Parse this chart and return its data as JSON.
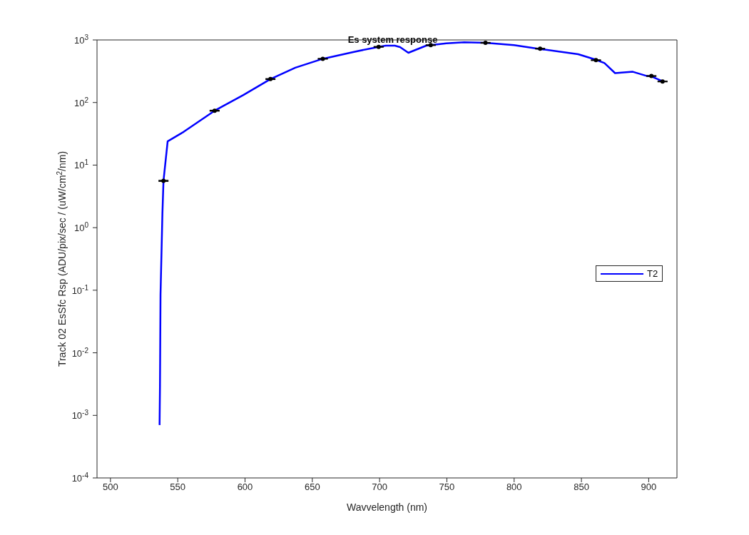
{
  "chart_data": {
    "type": "line",
    "title": "Es system response",
    "xlabel": "Wavvelength (nm)",
    "ylabel": "Track 02 EsSfc Rsp (ADU/pix/sec / (uW/cm$^{2}$/nm)",
    "log": "y",
    "xlim": [
      490,
      921
    ],
    "xticks": [
      500,
      550,
      600,
      650,
      700,
      750,
      800,
      850,
      900
    ],
    "ylim": [
      0.0001,
      1000
    ],
    "yticks": [
      {
        "value": 0.0001,
        "label": "10$^{-4}$"
      },
      {
        "value": 0.001,
        "label": "10$^{-3}$"
      },
      {
        "value": 0.01,
        "label": "10$^{-2}$"
      },
      {
        "value": 0.1,
        "label": "10$^{-1}$"
      },
      {
        "value": 1,
        "label": "10$^{0}$"
      },
      {
        "value": 10,
        "label": "10$^{1}$"
      },
      {
        "value": 100,
        "label": "10$^{2}$"
      },
      {
        "value": 1000,
        "label": "10$^{3}$"
      }
    ],
    "grid": false,
    "legend": "right",
    "marker": "none",
    "line_style": "solid",
    "series": [
      {
        "name": "T2",
        "color": "#0000ff",
        "x": [
          536.5,
          536.8,
          537.2,
          538.6,
          539.4,
          542.5,
          554.4,
          577.4,
          598.6,
          618.9,
          637.4,
          657.8,
          681.6,
          699.3,
          704.6,
          711.4,
          715.2,
          721.4,
          734.6,
          749.6,
          762.9,
          778.7,
          799.9,
          817.6,
          847.6,
          860.0,
          867.1,
          875.0,
          888.2,
          898.8,
          902.0,
          911.2
        ],
        "values": [
          0.0007,
          0.003,
          0.085,
          1.66,
          5.6,
          24,
          34,
          74,
          131,
          237,
          360,
          500,
          650,
          776,
          810,
          810,
          770,
          624,
          810,
          885,
          917,
          900,
          826,
          725,
          591,
          489,
          427,
          295,
          310,
          265,
          262,
          214
        ]
      },
      {
        "type": "scatter",
        "color": "#000000",
        "marker": "circle",
        "x": [
          539.4,
          577.4,
          618.9,
          657.8,
          699.3,
          738,
          778.7,
          819.3,
          860.8,
          902,
          910.3
        ],
        "values": [
          5.6,
          74,
          237,
          500,
          776,
          826,
          900,
          725,
          475,
          265,
          217
        ],
        "errors": [
          0.1,
          1,
          3,
          5,
          8,
          8,
          9,
          7,
          5,
          3,
          2
        ]
      }
    ]
  }
}
